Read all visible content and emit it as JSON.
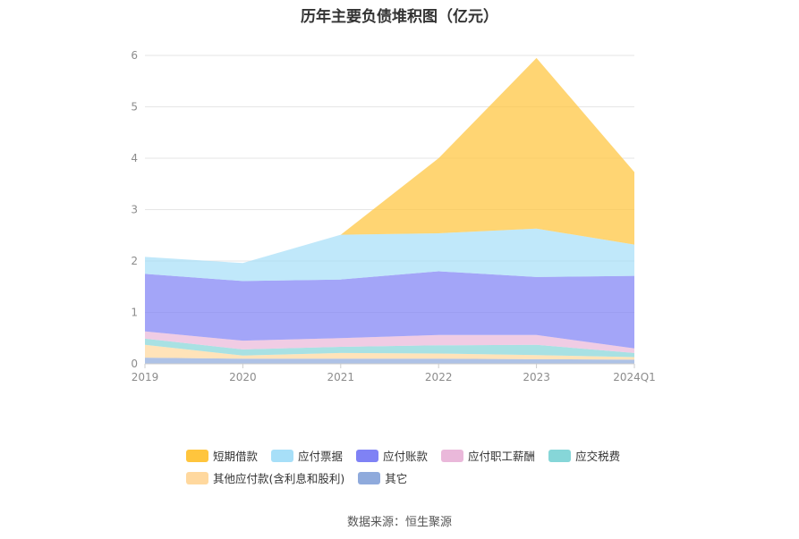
{
  "chart_data": {
    "type": "area",
    "stacked": true,
    "title": "历年主要负债堆积图（亿元）",
    "categories": [
      "2019",
      "2020",
      "2021",
      "2022",
      "2023",
      "2024Q1"
    ],
    "ylim": [
      0,
      6
    ],
    "yticks": [
      "0",
      "1",
      "2",
      "3",
      "4",
      "5",
      "6"
    ],
    "grid": true,
    "legend_position": "bottom",
    "series": [
      {
        "name": "其它",
        "color": "#8faadc",
        "values": [
          0.12,
          0.1,
          0.1,
          0.1,
          0.09,
          0.08
        ]
      },
      {
        "name": "其他应付款(含利息和股利)",
        "color": "#ffd89e",
        "values": [
          0.25,
          0.06,
          0.11,
          0.1,
          0.08,
          0.05
        ]
      },
      {
        "name": "应交税费",
        "color": "#86d6d8",
        "values": [
          0.12,
          0.12,
          0.12,
          0.16,
          0.2,
          0.08
        ]
      },
      {
        "name": "应付职工薪酬",
        "color": "#eab8da",
        "values": [
          0.14,
          0.17,
          0.17,
          0.2,
          0.19,
          0.09
        ]
      },
      {
        "name": "应付账款",
        "color": "#7f82f5",
        "values": [
          1.12,
          1.16,
          1.14,
          1.24,
          1.13,
          1.41
        ]
      },
      {
        "name": "应付票据",
        "color": "#a7dff8",
        "values": [
          0.33,
          0.35,
          0.87,
          0.74,
          0.94,
          0.61
        ]
      },
      {
        "name": "短期借款",
        "color": "#ffc53d",
        "values": [
          0.0,
          0.0,
          0.0,
          1.46,
          3.32,
          1.41
        ]
      }
    ]
  },
  "legend": {
    "row1": [
      {
        "label": "短期借款",
        "color": "#ffc53d"
      },
      {
        "label": "应付票据",
        "color": "#a7dff8"
      },
      {
        "label": "应付账款",
        "color": "#7f82f5"
      },
      {
        "label": "应付职工薪酬",
        "color": "#eab8da"
      },
      {
        "label": "应交税费",
        "color": "#86d6d8"
      }
    ],
    "row2": [
      {
        "label": "其他应付款(含利息和股利)",
        "color": "#ffd89e"
      },
      {
        "label": "其它",
        "color": "#8faadc"
      }
    ]
  },
  "source": "数据来源：恒生聚源"
}
